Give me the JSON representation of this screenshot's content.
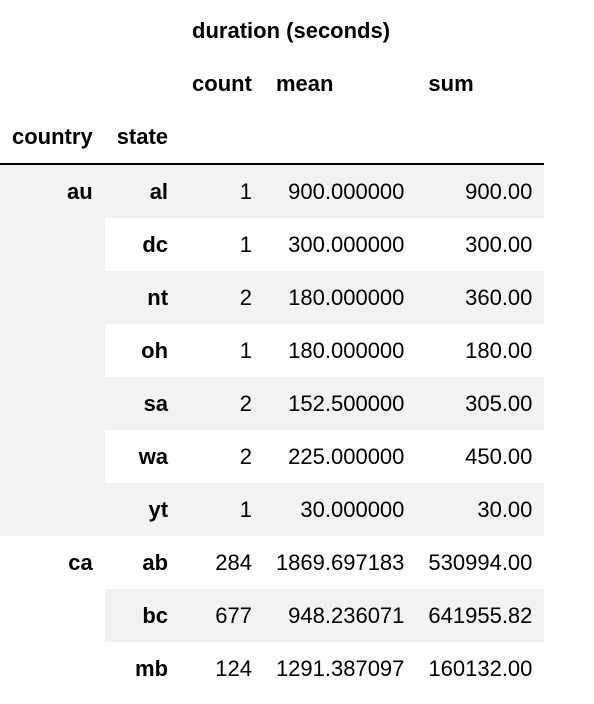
{
  "header": {
    "group_label": "duration (seconds)",
    "columns": [
      "count",
      "mean",
      "sum"
    ],
    "index_names": [
      "country",
      "state"
    ]
  },
  "groups": [
    {
      "country": "au",
      "rows": [
        {
          "state": "al",
          "count": "1",
          "mean": "900.000000",
          "sum": "900.00"
        },
        {
          "state": "dc",
          "count": "1",
          "mean": "300.000000",
          "sum": "300.00"
        },
        {
          "state": "nt",
          "count": "2",
          "mean": "180.000000",
          "sum": "360.00"
        },
        {
          "state": "oh",
          "count": "1",
          "mean": "180.000000",
          "sum": "180.00"
        },
        {
          "state": "sa",
          "count": "2",
          "mean": "152.500000",
          "sum": "305.00"
        },
        {
          "state": "wa",
          "count": "2",
          "mean": "225.000000",
          "sum": "450.00"
        },
        {
          "state": "yt",
          "count": "1",
          "mean": "30.000000",
          "sum": "30.00"
        }
      ]
    },
    {
      "country": "ca",
      "rows": [
        {
          "state": "ab",
          "count": "284",
          "mean": "1869.697183",
          "sum": "530994.00"
        },
        {
          "state": "bc",
          "count": "677",
          "mean": "948.236071",
          "sum": "641955.82"
        },
        {
          "state": "mb",
          "count": "124",
          "mean": "1291.387097",
          "sum": "160132.00"
        }
      ]
    }
  ],
  "colors": {
    "row_shade": "#f2f2f2",
    "border": "#000000"
  }
}
